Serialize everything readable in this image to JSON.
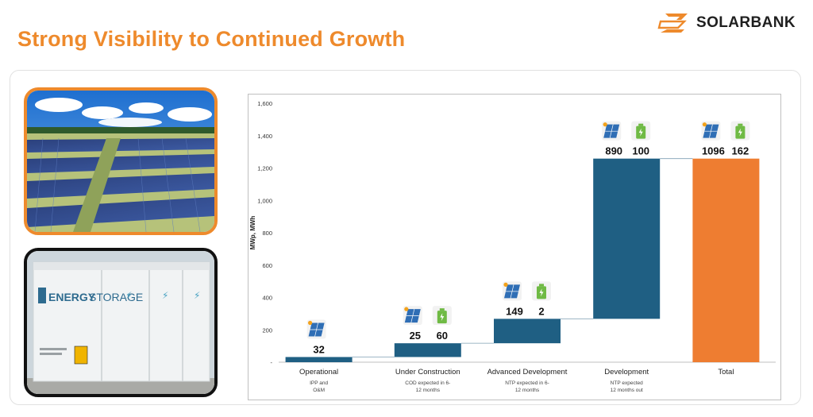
{
  "header": {
    "title": "Strong Visibility to Continued Growth",
    "logo_text": "SOLARBANK"
  },
  "photos": {
    "storage_label_1": "ENERGY",
    "storage_label_2": "STORAGE"
  },
  "colors": {
    "accent_orange": "#ee8a2c",
    "bar_blue": "#1f5f83",
    "total_orange": "#ee7d31",
    "battery_green": "#6fba44",
    "solar_icon_blue": "#2f6eb5"
  },
  "chart_data": {
    "type": "bar",
    "subtype": "waterfall",
    "ylabel": "MWp, MWh",
    "ylim": [
      0,
      1600
    ],
    "yticks": [
      "1,600",
      "1,400",
      "1,200",
      "1,000",
      "800",
      "600",
      "400",
      "200",
      "-"
    ],
    "ytick_values": [
      1600,
      1400,
      1200,
      1000,
      800,
      600,
      400,
      200,
      0
    ],
    "grid": false,
    "legend": "none",
    "categories": [
      {
        "label": "Operational",
        "sublabel": [
          "IPP and",
          "O&M"
        ],
        "solar": 32,
        "storage": null,
        "start": 0,
        "end": 32
      },
      {
        "label": "Under Construction",
        "sublabel": [
          "COD expected in 6-",
          "12 months"
        ],
        "solar": 25,
        "storage": 60,
        "start": 32,
        "end": 117
      },
      {
        "label": "Advanced Development",
        "sublabel": [
          "NTP expected in 6-",
          "12 months"
        ],
        "solar": 149,
        "storage": 2,
        "start": 117,
        "end": 268
      },
      {
        "label": "Development",
        "sublabel": [
          "NTP expected",
          "12 months out"
        ],
        "solar": 890,
        "storage": 100,
        "start": 268,
        "end": 1258
      },
      {
        "label": "Total",
        "sublabel": [],
        "solar": 1096,
        "storage": 162,
        "start": 0,
        "end": 1258,
        "is_total": true
      }
    ]
  }
}
